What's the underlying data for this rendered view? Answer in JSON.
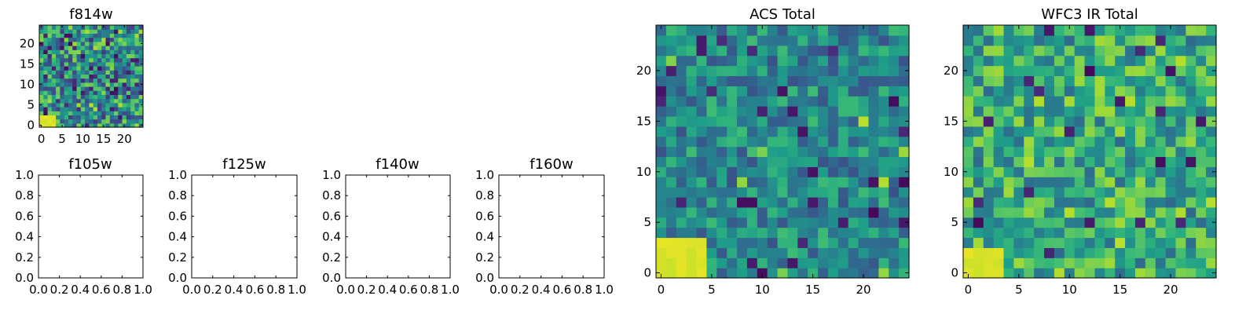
{
  "chart_data": [
    {
      "type": "heatmap",
      "title": "f814w",
      "x_ticks": [
        "0",
        "5",
        "10",
        "15",
        "20"
      ],
      "y_ticks": [
        "0",
        "5",
        "10",
        "15",
        "20"
      ],
      "xlim": [
        -0.5,
        24.5
      ],
      "ylim": [
        -0.5,
        24.5
      ],
      "grid_size": 25,
      "colormap": "viridis"
    },
    {
      "type": "heatmap",
      "title": "f105w",
      "x_ticks": [
        "0.0",
        "0.2",
        "0.4",
        "0.6",
        "0.8",
        "1.0"
      ],
      "y_ticks": [
        "0.0",
        "0.2",
        "0.4",
        "0.6",
        "0.8",
        "1.0"
      ],
      "xlim": [
        0,
        1
      ],
      "ylim": [
        0,
        1
      ],
      "empty": true
    },
    {
      "type": "heatmap",
      "title": "f125w",
      "x_ticks": [
        "0.0",
        "0.2",
        "0.4",
        "0.6",
        "0.8",
        "1.0"
      ],
      "y_ticks": [
        "0.0",
        "0.2",
        "0.4",
        "0.6",
        "0.8",
        "1.0"
      ],
      "xlim": [
        0,
        1
      ],
      "ylim": [
        0,
        1
      ],
      "empty": true
    },
    {
      "type": "heatmap",
      "title": "f140w",
      "x_ticks": [
        "0.0",
        "0.2",
        "0.4",
        "0.6",
        "0.8",
        "1.0"
      ],
      "y_ticks": [
        "0.0",
        "0.2",
        "0.4",
        "0.6",
        "0.8",
        "1.0"
      ],
      "xlim": [
        0,
        1
      ],
      "ylim": [
        0,
        1
      ],
      "empty": true
    },
    {
      "type": "heatmap",
      "title": "f160w",
      "x_ticks": [
        "0.0",
        "0.2",
        "0.4",
        "0.6",
        "0.8",
        "1.0"
      ],
      "y_ticks": [
        "0.0",
        "0.2",
        "0.4",
        "0.6",
        "0.8",
        "1.0"
      ],
      "xlim": [
        0,
        1
      ],
      "ylim": [
        0,
        1
      ],
      "empty": true
    },
    {
      "type": "heatmap",
      "title": "ACS Total",
      "x_ticks": [
        "0",
        "5",
        "10",
        "15",
        "20"
      ],
      "y_ticks": [
        "0",
        "5",
        "10",
        "15",
        "20"
      ],
      "xlim": [
        -0.5,
        24.5
      ],
      "ylim": [
        -0.5,
        24.5
      ],
      "grid_size": 25,
      "colormap": "viridis"
    },
    {
      "type": "heatmap",
      "title": "WFC3 IR Total",
      "x_ticks": [
        "0",
        "5",
        "10",
        "15",
        "20"
      ],
      "y_ticks": [
        "0",
        "5",
        "10",
        "15",
        "20"
      ],
      "xlim": [
        -0.5,
        24.5
      ],
      "ylim": [
        -0.5,
        24.5
      ],
      "grid_size": 25,
      "colormap": "viridis"
    }
  ]
}
